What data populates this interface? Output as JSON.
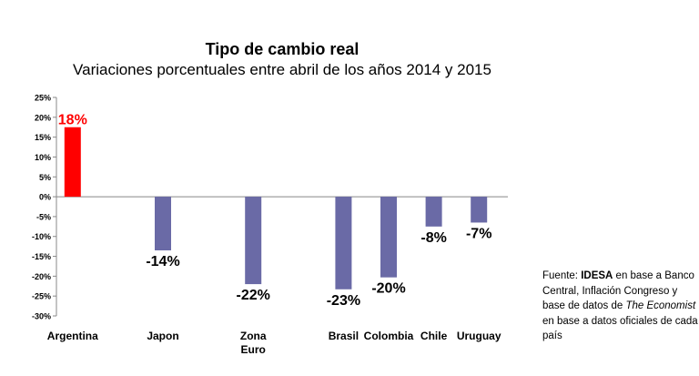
{
  "chart_data": {
    "type": "bar",
    "title": "Tipo de cambio real",
    "subtitle": "Variaciones porcentuales entre abril de los años 2014 y 2015",
    "categories": [
      "Argentina",
      "Japon",
      "Zona\nEuro",
      "Brasil",
      "Colombia",
      "Chile",
      "Uruguay"
    ],
    "values": [
      17.5,
      -13.5,
      -22,
      -23.3,
      -20.3,
      -7.5,
      -6.5
    ],
    "data_labels": [
      "18%",
      "-14%",
      "-22%",
      "-23%",
      "-20%",
      "-8%",
      "-7%"
    ],
    "bar_colors": [
      "#ff0000",
      "#6a6aa6",
      "#6a6aa6",
      "#6a6aa6",
      "#6a6aa6",
      "#6a6aa6",
      "#6a6aa6"
    ],
    "highlight_label_color": "#ff0000",
    "ylim": [
      -30,
      25
    ],
    "yticks": [
      25,
      20,
      15,
      10,
      5,
      0,
      -5,
      -10,
      -15,
      -20,
      -25,
      -30
    ],
    "ytick_labels": [
      "25%",
      "20%",
      "15%",
      "10%",
      "5%",
      "0%",
      "-5%",
      "-10%",
      "-15%",
      "-20%",
      "-25%",
      "-30%"
    ],
    "xlabel": "",
    "ylabel": "",
    "grid": false
  },
  "source": {
    "prefix": "Fuente: ",
    "org": "IDESA",
    "part1": " en base a Banco Central, Inflación Congreso y base de datos de ",
    "publication": "The Economist",
    "part2": " en base a datos oficiales de cada país"
  }
}
